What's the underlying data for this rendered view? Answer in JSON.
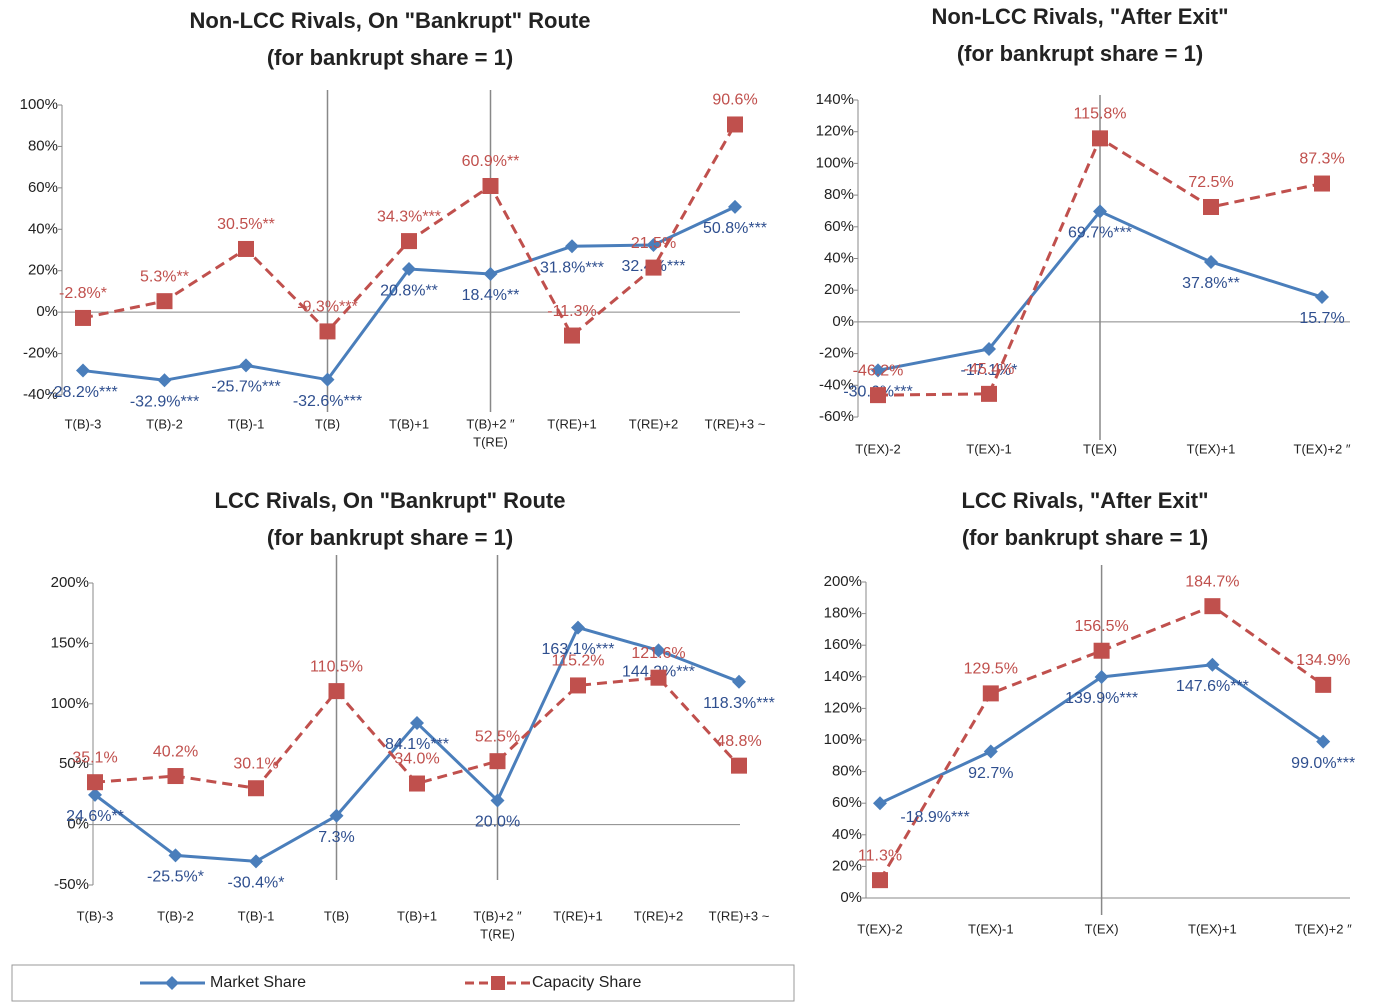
{
  "chart_data": [
    {
      "type": "line",
      "title": "Non-LCC Rivals, On \"Bankrupt\" Route",
      "subtitle": "(for bankrupt share = 1)",
      "categories": [
        "T(B)-3",
        "T(B)-2",
        "T(B)-1",
        "T(B)",
        "T(B)+1",
        [
          "T(B)+2 ″",
          "T(RE)"
        ],
        "T(RE)+1",
        "T(RE)+2",
        "T(RE)+3 ~"
      ],
      "series": [
        {
          "name": "Market Share",
          "color": "#4a7ebb",
          "line_style": "solid",
          "marker": "diamond",
          "values": [
            -28.2,
            -32.9,
            -25.7,
            -32.6,
            20.8,
            18.4,
            31.8,
            32.4,
            50.8
          ],
          "value_labels": [
            "-28.2%***",
            "-32.9%***",
            "-25.7%***",
            "-32.6%***",
            "20.8%**",
            "18.4%**",
            "31.8%***",
            "32.4%***",
            "50.8%***"
          ]
        },
        {
          "name": "Capacity Share",
          "color": "#c0504d",
          "line_style": "dashed",
          "marker": "square",
          "values": [
            -2.8,
            5.3,
            30.5,
            -9.3,
            34.3,
            60.9,
            -11.3,
            21.5,
            90.6
          ],
          "value_labels": [
            "-2.8%*",
            "5.3%**",
            "30.5%**",
            "-9.3%***",
            "34.3%***",
            "60.9%**",
            "-11.3%",
            "21.5%",
            "90.6%"
          ]
        }
      ],
      "ylim": [
        -40,
        100
      ],
      "yticks": [
        {
          "value": -40,
          "label": "-40%"
        },
        {
          "value": -20,
          "label": "-20%"
        },
        {
          "value": 0,
          "label": "0%"
        },
        {
          "value": 20,
          "label": "20%"
        },
        {
          "value": 40,
          "label": "40%"
        },
        {
          "value": 60,
          "label": "60%"
        },
        {
          "value": 80,
          "label": "80%"
        },
        {
          "value": 100,
          "label": "100%"
        }
      ]
    },
    {
      "type": "line",
      "title": "Non-LCC Rivals, \"After Exit\"",
      "subtitle": "(for bankrupt share = 1)",
      "categories": [
        "T(EX)-2",
        "T(EX)-1",
        "T(EX)",
        "T(EX)+1",
        "T(EX)+2 ″"
      ],
      "series": [
        {
          "name": "Market Share",
          "color": "#4a7ebb",
          "line_style": "solid",
          "marker": "diamond",
          "values": [
            -30.6,
            -17.1,
            69.7,
            37.8,
            15.7
          ],
          "value_labels": [
            "-30.6%***",
            "-17.1%*",
            "69.7%***",
            "37.8%**",
            "15.7%"
          ]
        },
        {
          "name": "Capacity Share",
          "color": "#c0504d",
          "line_style": "dashed",
          "marker": "square",
          "values": [
            -46.2,
            -45.4,
            115.8,
            72.5,
            87.3
          ],
          "value_labels": [
            "-46.2%",
            "-45.4%",
            "115.8%",
            "72.5%",
            "87.3%"
          ]
        }
      ],
      "ylim": [
        -60,
        140
      ],
      "yticks": [
        {
          "value": -60,
          "label": "-60%"
        },
        {
          "value": -40,
          "label": "-40%"
        },
        {
          "value": -20,
          "label": "-20%"
        },
        {
          "value": 0,
          "label": "0%"
        },
        {
          "value": 20,
          "label": "20%"
        },
        {
          "value": 40,
          "label": "40%"
        },
        {
          "value": 60,
          "label": "60%"
        },
        {
          "value": 80,
          "label": "80%"
        },
        {
          "value": 100,
          "label": "100%"
        },
        {
          "value": 120,
          "label": "120%"
        },
        {
          "value": 140,
          "label": "140%"
        }
      ]
    },
    {
      "type": "line",
      "title": "LCC Rivals, On \"Bankrupt\" Route",
      "subtitle": "(for bankrupt share = 1)",
      "categories": [
        "T(B)-3",
        "T(B)-2",
        "T(B)-1",
        "T(B)",
        "T(B)+1",
        [
          "T(B)+2 ″",
          "T(RE)"
        ],
        "T(RE)+1",
        "T(RE)+2",
        "T(RE)+3 ~"
      ],
      "series": [
        {
          "name": "Market Share",
          "color": "#4a7ebb",
          "line_style": "solid",
          "marker": "diamond",
          "values": [
            24.6,
            -25.5,
            -30.4,
            7.3,
            84.1,
            20.0,
            163.1,
            144.2,
            118.3
          ],
          "value_labels": [
            "24.6%**",
            "-25.5%*",
            "-30.4%*",
            "7.3%",
            "84.1%***",
            "20.0%",
            "163.1%***",
            "144.2%***",
            "118.3%***"
          ]
        },
        {
          "name": "Capacity Share",
          "color": "#c0504d",
          "line_style": "dashed",
          "marker": "square",
          "values": [
            35.1,
            40.2,
            30.1,
            110.5,
            34.0,
            52.5,
            115.2,
            121.6,
            48.8
          ],
          "value_labels": [
            "35.1%",
            "40.2%",
            "30.1%",
            "110.5%",
            "34.0%",
            "52.5%",
            "115.2%",
            "121.6%",
            "48.8%"
          ]
        }
      ],
      "ylim": [
        -50,
        200
      ],
      "yticks": [
        {
          "value": -50,
          "label": "-50%"
        },
        {
          "value": 0,
          "label": "0%"
        },
        {
          "value": 50,
          "label": "50%"
        },
        {
          "value": 100,
          "label": "100%"
        },
        {
          "value": 150,
          "label": "150%"
        },
        {
          "value": 200,
          "label": "200%"
        }
      ]
    },
    {
      "type": "line",
      "title": "LCC Rivals, \"After Exit\"",
      "subtitle": "(for bankrupt share = 1)",
      "categories": [
        "T(EX)-2",
        "T(EX)-1",
        "T(EX)",
        "T(EX)+1",
        "T(EX)+2 ″"
      ],
      "series": [
        {
          "name": "Market Share",
          "color": "#4a7ebb",
          "line_style": "solid",
          "marker": "diamond",
          "values": [
            60,
            92.7,
            139.9,
            147.6,
            99.0
          ],
          "value_labels": [
            null,
            "92.7%",
            "139.9%***",
            "147.6%***",
            "99.0%***"
          ]
        },
        {
          "name": "Capacity Share",
          "color": "#c0504d",
          "line_style": "dashed",
          "marker": "square",
          "values": [
            11.3,
            129.5,
            156.5,
            184.7,
            134.9
          ],
          "value_labels": [
            "11.3%",
            "129.5%",
            "156.5%",
            "184.7%",
            "134.9%"
          ]
        }
      ],
      "annotation": "-18.9%***",
      "ylim": [
        0,
        200
      ],
      "yticks": [
        {
          "value": 0,
          "label": "0%"
        },
        {
          "value": 20,
          "label": "20%"
        },
        {
          "value": 40,
          "label": "40%"
        },
        {
          "value": 60,
          "label": "60%"
        },
        {
          "value": 80,
          "label": "80%"
        },
        {
          "value": 100,
          "label": "100%"
        },
        {
          "value": 120,
          "label": "120%"
        },
        {
          "value": 140,
          "label": "140%"
        },
        {
          "value": 160,
          "label": "160%"
        },
        {
          "value": 180,
          "label": "180%"
        },
        {
          "value": 200,
          "label": "200%"
        }
      ]
    }
  ]
}
